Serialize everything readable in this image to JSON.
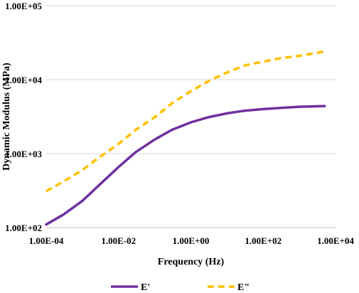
{
  "chart_data": {
    "type": "line",
    "title": "",
    "xlabel": "Frequency (Hz)",
    "ylabel": "Dynamic Modulus (MPa)",
    "xscale": "log",
    "yscale": "log",
    "xlim": [
      0.0001,
      10000
    ],
    "ylim": [
      100,
      100000
    ],
    "x_ticks": [
      "1.00E-04",
      "1.00E-02",
      "1.00E+00",
      "1.00E+02",
      "1.00E+04"
    ],
    "y_ticks": [
      "1.00E+02",
      "1.00E+03",
      "1.00E+04",
      "1.00E+05"
    ],
    "grid": "horizontal",
    "legend_position": "bottom",
    "series": [
      {
        "name": "E'",
        "color": "#7030A0",
        "style": "solid",
        "x": [
          0.0001,
          0.0003,
          0.001,
          0.003,
          0.01,
          0.03,
          0.1,
          0.3,
          1,
          3,
          10,
          30,
          100,
          300,
          1000,
          5000
        ],
        "y": [
          110,
          150,
          230,
          380,
          660,
          1050,
          1550,
          2100,
          2650,
          3100,
          3500,
          3800,
          4000,
          4150,
          4300,
          4400
        ]
      },
      {
        "name": "E\"",
        "color": "#FFC000",
        "style": "dashed",
        "x": [
          0.0001,
          0.0003,
          0.001,
          0.003,
          0.01,
          0.03,
          0.1,
          0.3,
          1,
          3,
          10,
          30,
          100,
          300,
          1000,
          5000
        ],
        "y": [
          310,
          420,
          600,
          900,
          1350,
          2100,
          3100,
          4800,
          7000,
          9500,
          12500,
          15500,
          17500,
          19500,
          21000,
          24000
        ]
      }
    ]
  }
}
